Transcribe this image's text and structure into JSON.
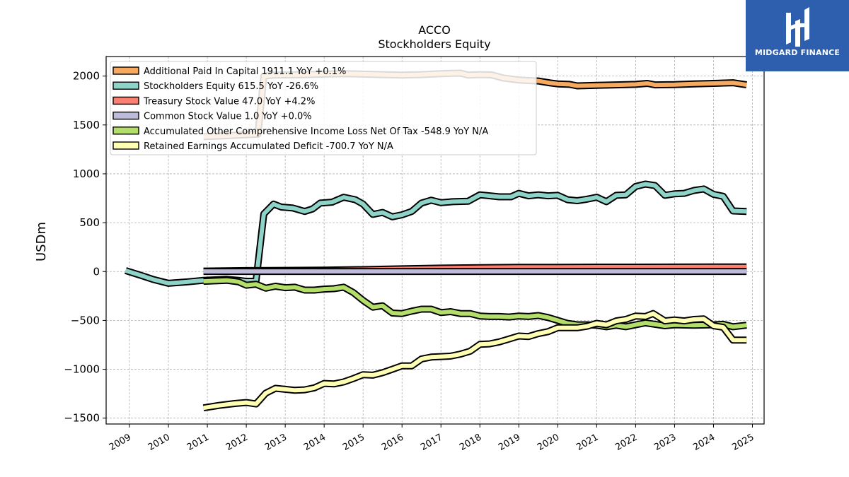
{
  "brand": {
    "name": "MIDGARD FINANCE",
    "color": "#2d5fae",
    "icon": "midgard-logo-icon"
  },
  "chart_data": {
    "type": "line",
    "title": "ACCO",
    "subtitle": "Stockholders  Equity",
    "ylabel": "USDm",
    "xlabel": "",
    "xlim": [
      2008.4,
      2025.3
    ],
    "ylim": [
      -1560,
      2200
    ],
    "yticks": [
      -1500,
      -1000,
      -500,
      0,
      500,
      1000,
      1500,
      2000
    ],
    "ytick_labels": [
      "−1500",
      "−1000",
      "−500",
      "0",
      "500",
      "1000",
      "1500",
      "2000"
    ],
    "xticks": [
      2009,
      2010,
      2011,
      2012,
      2013,
      2014,
      2015,
      2016,
      2017,
      2018,
      2019,
      2020,
      2021,
      2022,
      2023,
      2024,
      2025
    ],
    "xtick_labels": [
      "2009",
      "2010",
      "2011",
      "2012",
      "2013",
      "2014",
      "2015",
      "2016",
      "2017",
      "2018",
      "2019",
      "2020",
      "2021",
      "2022",
      "2023",
      "2024",
      "2025"
    ],
    "grid": true,
    "legend_position": "top-left",
    "series": [
      {
        "name": "Additional Paid In Capital  1911.1 YoY +0.1%",
        "color": "#f6a95f",
        "points": [
          [
            2010.9,
            1380
          ],
          [
            2011.5,
            1390
          ],
          [
            2012.0,
            1400
          ],
          [
            2012.3,
            1405
          ],
          [
            2012.45,
            2000
          ],
          [
            2012.7,
            2010
          ],
          [
            2013.0,
            2012
          ],
          [
            2013.5,
            2015
          ],
          [
            2014.0,
            2020
          ],
          [
            2014.5,
            2025
          ],
          [
            2015.0,
            2020
          ],
          [
            2015.5,
            2015
          ],
          [
            2016.0,
            2010
          ],
          [
            2016.5,
            2015
          ],
          [
            2017.0,
            2025
          ],
          [
            2017.5,
            2030
          ],
          [
            2017.7,
            2010
          ],
          [
            2018.0,
            2015
          ],
          [
            2018.3,
            2012
          ],
          [
            2018.6,
            1980
          ],
          [
            2019.0,
            1960
          ],
          [
            2019.5,
            1950
          ],
          [
            2019.8,
            1930
          ],
          [
            2020.0,
            1920
          ],
          [
            2020.3,
            1915
          ],
          [
            2020.5,
            1900
          ],
          [
            2021.0,
            1905
          ],
          [
            2021.5,
            1910
          ],
          [
            2022.0,
            1915
          ],
          [
            2022.3,
            1925
          ],
          [
            2022.5,
            1910
          ],
          [
            2023.0,
            1912
          ],
          [
            2023.5,
            1920
          ],
          [
            2024.0,
            1925
          ],
          [
            2024.5,
            1932
          ],
          [
            2024.85,
            1911
          ]
        ]
      },
      {
        "name": "Stockholders Equity  615.5 YoY -26.6%",
        "color": "#8dd3c7",
        "points": [
          [
            2008.9,
            10
          ],
          [
            2009.3,
            -40
          ],
          [
            2009.6,
            -80
          ],
          [
            2010.0,
            -120
          ],
          [
            2010.5,
            -105
          ],
          [
            2010.9,
            -90
          ],
          [
            2011.2,
            -85
          ],
          [
            2011.5,
            -80
          ],
          [
            2011.8,
            -90
          ],
          [
            2012.0,
            -100
          ],
          [
            2012.25,
            -95
          ],
          [
            2012.45,
            590
          ],
          [
            2012.7,
            690
          ],
          [
            2012.9,
            660
          ],
          [
            2013.2,
            650
          ],
          [
            2013.5,
            615
          ],
          [
            2013.7,
            640
          ],
          [
            2013.9,
            700
          ],
          [
            2014.2,
            710
          ],
          [
            2014.5,
            760
          ],
          [
            2014.8,
            735
          ],
          [
            2015.0,
            690
          ],
          [
            2015.25,
            585
          ],
          [
            2015.5,
            605
          ],
          [
            2015.75,
            560
          ],
          [
            2016.0,
            580
          ],
          [
            2016.25,
            615
          ],
          [
            2016.5,
            700
          ],
          [
            2016.75,
            730
          ],
          [
            2017.0,
            705
          ],
          [
            2017.3,
            715
          ],
          [
            2017.7,
            720
          ],
          [
            2018.0,
            785
          ],
          [
            2018.5,
            765
          ],
          [
            2018.8,
            765
          ],
          [
            2019.0,
            800
          ],
          [
            2019.25,
            775
          ],
          [
            2019.5,
            785
          ],
          [
            2019.75,
            775
          ],
          [
            2020.0,
            780
          ],
          [
            2020.25,
            735
          ],
          [
            2020.5,
            725
          ],
          [
            2020.75,
            740
          ],
          [
            2021.0,
            760
          ],
          [
            2021.25,
            715
          ],
          [
            2021.5,
            780
          ],
          [
            2021.75,
            785
          ],
          [
            2022.0,
            870
          ],
          [
            2022.25,
            895
          ],
          [
            2022.5,
            880
          ],
          [
            2022.75,
            780
          ],
          [
            2023.0,
            795
          ],
          [
            2023.25,
            800
          ],
          [
            2023.5,
            830
          ],
          [
            2023.75,
            845
          ],
          [
            2024.0,
            790
          ],
          [
            2024.25,
            770
          ],
          [
            2024.5,
            620
          ],
          [
            2024.85,
            615
          ]
        ]
      },
      {
        "name": "Treasury Stock Value  47.0 YoY +4.2%",
        "color": "#fb8072",
        "points": [
          [
            2010.9,
            5
          ],
          [
            2012.0,
            10
          ],
          [
            2013.0,
            12
          ],
          [
            2014.0,
            15
          ],
          [
            2015.0,
            20
          ],
          [
            2016.0,
            28
          ],
          [
            2017.0,
            35
          ],
          [
            2018.0,
            40
          ],
          [
            2019.0,
            43
          ],
          [
            2020.0,
            44
          ],
          [
            2021.0,
            45
          ],
          [
            2022.0,
            45
          ],
          [
            2023.0,
            46
          ],
          [
            2024.0,
            47
          ],
          [
            2024.85,
            47
          ]
        ]
      },
      {
        "name": "Common Stock Value  1.0 YoY +0.0%",
        "color": "#bebada",
        "points": [
          [
            2010.9,
            1
          ],
          [
            2024.85,
            1
          ]
        ]
      },
      {
        "name": "Accumulated Other Comprehensive Income Loss Net Of Tax  -548.9 YoY N/A",
        "color": "#b3de69",
        "points": [
          [
            2010.9,
            -100
          ],
          [
            2011.2,
            -95
          ],
          [
            2011.5,
            -90
          ],
          [
            2011.8,
            -105
          ],
          [
            2012.0,
            -140
          ],
          [
            2012.25,
            -130
          ],
          [
            2012.5,
            -170
          ],
          [
            2012.75,
            -150
          ],
          [
            2013.0,
            -165
          ],
          [
            2013.25,
            -160
          ],
          [
            2013.5,
            -190
          ],
          [
            2013.75,
            -190
          ],
          [
            2014.0,
            -180
          ],
          [
            2014.25,
            -175
          ],
          [
            2014.5,
            -160
          ],
          [
            2014.75,
            -215
          ],
          [
            2015.0,
            -295
          ],
          [
            2015.25,
            -365
          ],
          [
            2015.5,
            -350
          ],
          [
            2015.75,
            -425
          ],
          [
            2016.0,
            -430
          ],
          [
            2016.25,
            -405
          ],
          [
            2016.5,
            -385
          ],
          [
            2016.75,
            -385
          ],
          [
            2017.0,
            -420
          ],
          [
            2017.25,
            -410
          ],
          [
            2017.5,
            -430
          ],
          [
            2017.75,
            -430
          ],
          [
            2018.0,
            -455
          ],
          [
            2018.25,
            -460
          ],
          [
            2018.5,
            -460
          ],
          [
            2018.75,
            -465
          ],
          [
            2019.0,
            -455
          ],
          [
            2019.25,
            -460
          ],
          [
            2019.5,
            -450
          ],
          [
            2019.75,
            -470
          ],
          [
            2020.0,
            -500
          ],
          [
            2020.25,
            -530
          ],
          [
            2020.5,
            -545
          ],
          [
            2020.75,
            -545
          ],
          [
            2021.0,
            -550
          ],
          [
            2021.25,
            -565
          ],
          [
            2021.5,
            -550
          ],
          [
            2021.75,
            -565
          ],
          [
            2022.0,
            -545
          ],
          [
            2022.25,
            -525
          ],
          [
            2022.5,
            -540
          ],
          [
            2022.75,
            -555
          ],
          [
            2023.0,
            -545
          ],
          [
            2023.5,
            -550
          ],
          [
            2024.0,
            -545
          ],
          [
            2024.25,
            -540
          ],
          [
            2024.5,
            -565
          ],
          [
            2024.85,
            -549
          ]
        ]
      },
      {
        "name": "Retained Earnings Accumulated Deficit  -700.7 YoY N/A",
        "color": "#ffffb3",
        "points": [
          [
            2010.9,
            -1395
          ],
          [
            2011.3,
            -1370
          ],
          [
            2011.7,
            -1350
          ],
          [
            2012.0,
            -1340
          ],
          [
            2012.25,
            -1355
          ],
          [
            2012.5,
            -1245
          ],
          [
            2012.75,
            -1195
          ],
          [
            2013.0,
            -1205
          ],
          [
            2013.25,
            -1215
          ],
          [
            2013.5,
            -1210
          ],
          [
            2013.75,
            -1190
          ],
          [
            2014.0,
            -1145
          ],
          [
            2014.25,
            -1150
          ],
          [
            2014.5,
            -1130
          ],
          [
            2014.75,
            -1095
          ],
          [
            2015.0,
            -1055
          ],
          [
            2015.25,
            -1060
          ],
          [
            2015.5,
            -1035
          ],
          [
            2015.75,
            -1000
          ],
          [
            2016.0,
            -965
          ],
          [
            2016.25,
            -965
          ],
          [
            2016.5,
            -895
          ],
          [
            2016.75,
            -875
          ],
          [
            2017.0,
            -870
          ],
          [
            2017.25,
            -865
          ],
          [
            2017.5,
            -845
          ],
          [
            2017.75,
            -815
          ],
          [
            2018.0,
            -745
          ],
          [
            2018.25,
            -740
          ],
          [
            2018.5,
            -720
          ],
          [
            2018.75,
            -690
          ],
          [
            2019.0,
            -660
          ],
          [
            2019.25,
            -665
          ],
          [
            2019.5,
            -635
          ],
          [
            2019.75,
            -615
          ],
          [
            2020.0,
            -575
          ],
          [
            2020.25,
            -575
          ],
          [
            2020.5,
            -575
          ],
          [
            2020.75,
            -560
          ],
          [
            2021.0,
            -530
          ],
          [
            2021.25,
            -545
          ],
          [
            2021.5,
            -505
          ],
          [
            2021.75,
            -490
          ],
          [
            2022.0,
            -455
          ],
          [
            2022.25,
            -460
          ],
          [
            2022.45,
            -430
          ],
          [
            2022.75,
            -505
          ],
          [
            2023.0,
            -495
          ],
          [
            2023.25,
            -505
          ],
          [
            2023.5,
            -490
          ],
          [
            2023.75,
            -485
          ],
          [
            2024.0,
            -555
          ],
          [
            2024.25,
            -570
          ],
          [
            2024.5,
            -701
          ],
          [
            2024.85,
            -700.7
          ]
        ]
      }
    ]
  }
}
